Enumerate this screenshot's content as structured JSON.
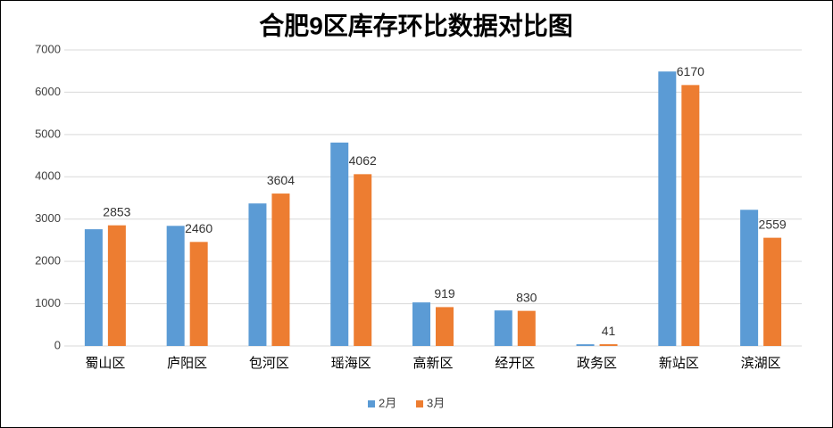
{
  "chart_data": {
    "type": "bar",
    "title": "合肥9区库存环比数据对比图",
    "categories": [
      "蜀山区",
      "庐阳区",
      "包河区",
      "瑶海区",
      "高新区",
      "经开区",
      "政务区",
      "新站区",
      "滨湖区"
    ],
    "series": [
      {
        "name": "2月",
        "color": "#5b9bd5",
        "values": [
          2760,
          2840,
          3370,
          4810,
          1030,
          840,
          40,
          6490,
          3220
        ],
        "data_labels": false
      },
      {
        "name": "3月",
        "color": "#ed7d31",
        "values": [
          2853,
          2460,
          3604,
          4062,
          919,
          830,
          41,
          6170,
          2559
        ],
        "data_labels": true
      }
    ],
    "ylim": [
      0,
      7000
    ],
    "yticks": [
      0,
      1000,
      2000,
      3000,
      4000,
      5000,
      6000,
      7000
    ],
    "grid": true,
    "legend": "bottom"
  }
}
